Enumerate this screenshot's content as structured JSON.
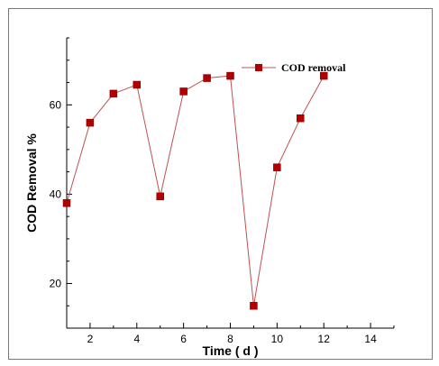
{
  "chart_data": {
    "type": "line",
    "title": "",
    "xlabel": "Time ( d )",
    "ylabel": "COD Removal %",
    "xlim": [
      1,
      15
    ],
    "ylim": [
      10,
      75
    ],
    "xticks": [
      2,
      4,
      6,
      8,
      10,
      12,
      14
    ],
    "yticks": [
      20,
      40,
      60
    ],
    "grid": false,
    "legend": "top-right",
    "series": [
      {
        "name": "COD removal",
        "color": "#c0504d",
        "marker_color": "#b00000",
        "marker": "square",
        "x": [
          1,
          2,
          3,
          4,
          5,
          6,
          7,
          8,
          9,
          10,
          11,
          12
        ],
        "y": [
          38,
          56,
          62.5,
          64.5,
          39.5,
          63,
          66,
          66.5,
          15,
          46,
          57,
          66.5
        ]
      }
    ]
  }
}
